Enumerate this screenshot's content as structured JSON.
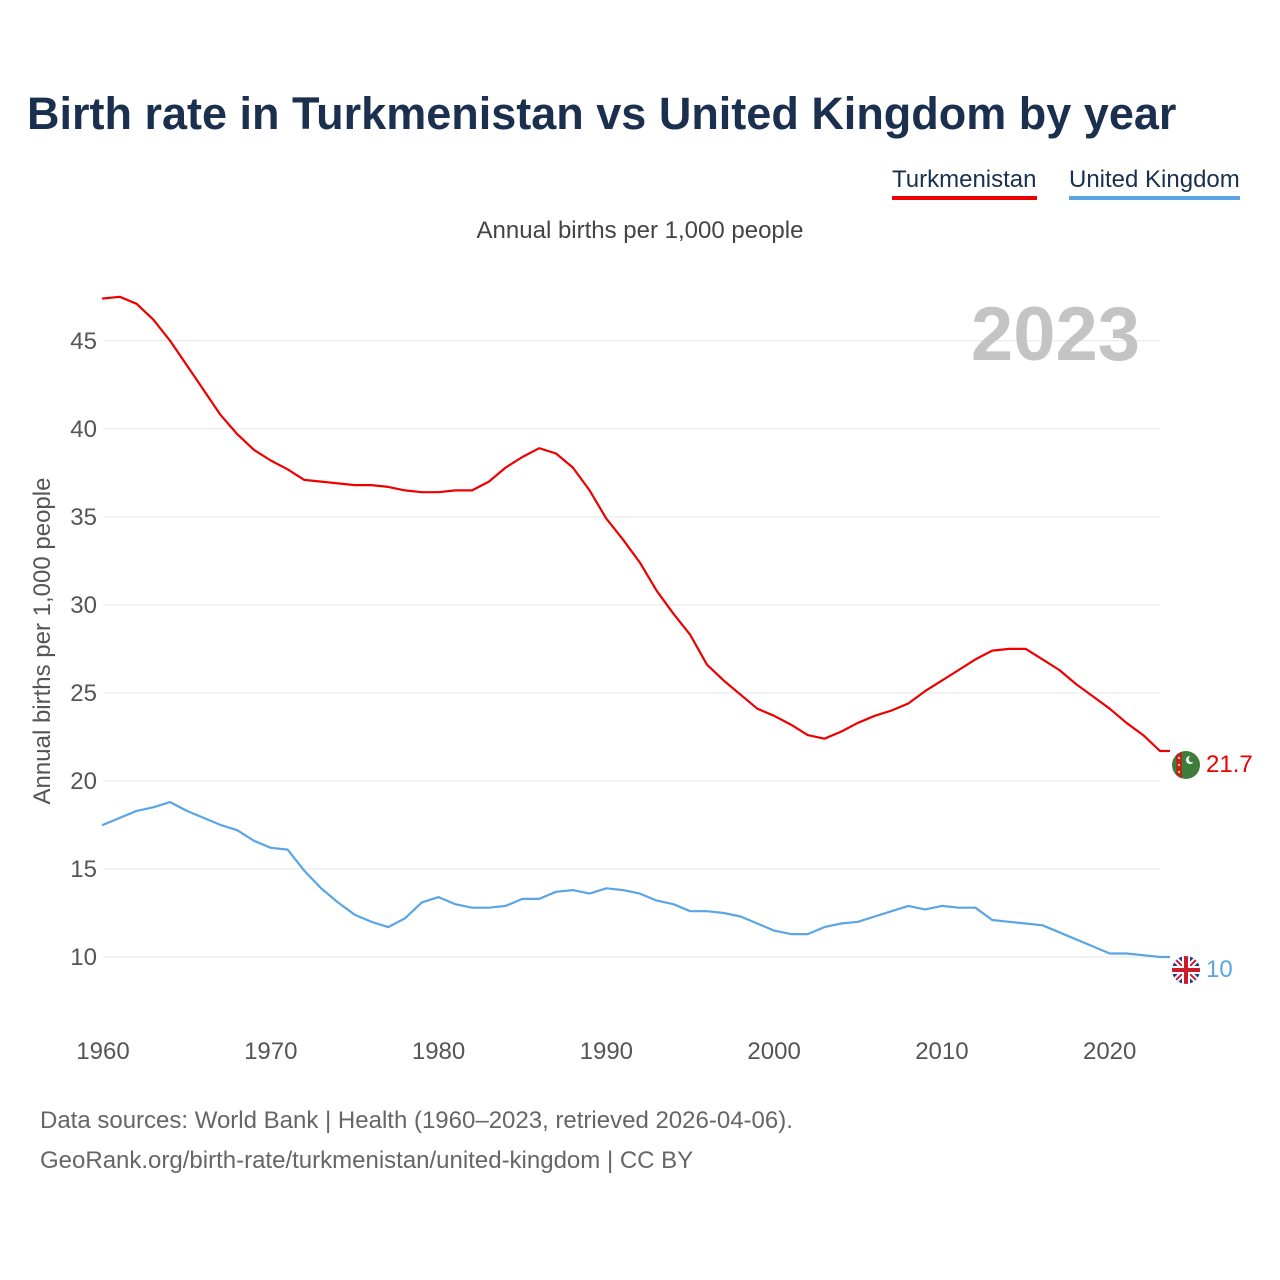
{
  "title": "Birth rate in Turkmenistan vs United Kingdom by year",
  "subtitle": "Annual births per 1,000 people",
  "legend": [
    {
      "label": "Turkmenistan",
      "color": "#ee0000"
    },
    {
      "label": "United Kingdom",
      "color": "#5ba4e6"
    }
  ],
  "footer": {
    "source_line": "Data sources: World Bank | Health (1960–2023, retrieved 2026-04-06).",
    "url_line": "GeoRank.org/birth-rate/turkmenistan/united-kingdom | CC BY"
  },
  "chart_data": {
    "type": "line",
    "title": "Birth rate in Turkmenistan vs United Kingdom by year",
    "ylabel": "Annual births per 1,000 people",
    "xlabel": "",
    "year_label": "2023",
    "xlim": [
      1960,
      2023
    ],
    "ylim": [
      7.5,
      47.6
    ],
    "x_ticks": [
      1960,
      1970,
      1980,
      1990,
      2000,
      2010,
      2020
    ],
    "y_ticks": [
      10,
      15,
      20,
      25,
      30,
      35,
      40,
      45
    ],
    "grid": true,
    "x": [
      1960,
      1961,
      1962,
      1963,
      1964,
      1965,
      1966,
      1967,
      1968,
      1969,
      1970,
      1971,
      1972,
      1973,
      1974,
      1975,
      1976,
      1977,
      1978,
      1979,
      1980,
      1981,
      1982,
      1983,
      1984,
      1985,
      1986,
      1987,
      1988,
      1989,
      1990,
      1991,
      1992,
      1993,
      1994,
      1995,
      1996,
      1997,
      1998,
      1999,
      2000,
      2001,
      2002,
      2003,
      2004,
      2005,
      2006,
      2007,
      2008,
      2009,
      2010,
      2011,
      2012,
      2013,
      2014,
      2015,
      2016,
      2017,
      2018,
      2019,
      2020,
      2021,
      2022,
      2023
    ],
    "series": [
      {
        "name": "Turkmenistan",
        "color": "#ee0000",
        "end_label": "21.7",
        "flag": "turkmenistan-flag",
        "values": [
          47.4,
          47.5,
          47.1,
          46.2,
          45.0,
          43.6,
          42.2,
          40.8,
          39.7,
          38.8,
          38.2,
          37.7,
          37.1,
          37.0,
          36.9,
          36.8,
          36.8,
          36.7,
          36.5,
          36.4,
          36.4,
          36.5,
          36.5,
          37.0,
          37.8,
          38.4,
          38.9,
          38.6,
          37.8,
          36.5,
          34.9,
          33.7,
          32.4,
          30.8,
          29.5,
          28.3,
          26.6,
          25.7,
          24.9,
          24.1,
          23.7,
          23.2,
          22.6,
          22.4,
          22.8,
          23.3,
          23.7,
          24.0,
          24.4,
          25.1,
          25.7,
          26.3,
          26.9,
          27.4,
          27.5,
          27.5,
          26.9,
          26.3,
          25.5,
          24.8,
          24.1,
          23.3,
          22.6,
          21.7
        ]
      },
      {
        "name": "United Kingdom",
        "color": "#5ba4e6",
        "end_label": "10",
        "flag": "united-kingdom-flag",
        "values": [
          17.5,
          17.9,
          18.3,
          18.5,
          18.8,
          18.3,
          17.9,
          17.5,
          17.2,
          16.6,
          16.2,
          16.1,
          14.9,
          13.9,
          13.1,
          12.4,
          12.0,
          11.7,
          12.2,
          13.1,
          13.4,
          13.0,
          12.8,
          12.8,
          12.9,
          13.3,
          13.3,
          13.7,
          13.8,
          13.6,
          13.9,
          13.8,
          13.6,
          13.2,
          13.0,
          12.6,
          12.6,
          12.5,
          12.3,
          11.9,
          11.5,
          11.3,
          11.3,
          11.7,
          11.9,
          12.0,
          12.3,
          12.6,
          12.9,
          12.7,
          12.9,
          12.8,
          12.8,
          12.1,
          12.0,
          11.9,
          11.8,
          11.4,
          11.0,
          10.6,
          10.2,
          10.2,
          10.1,
          10.0
        ]
      }
    ]
  }
}
